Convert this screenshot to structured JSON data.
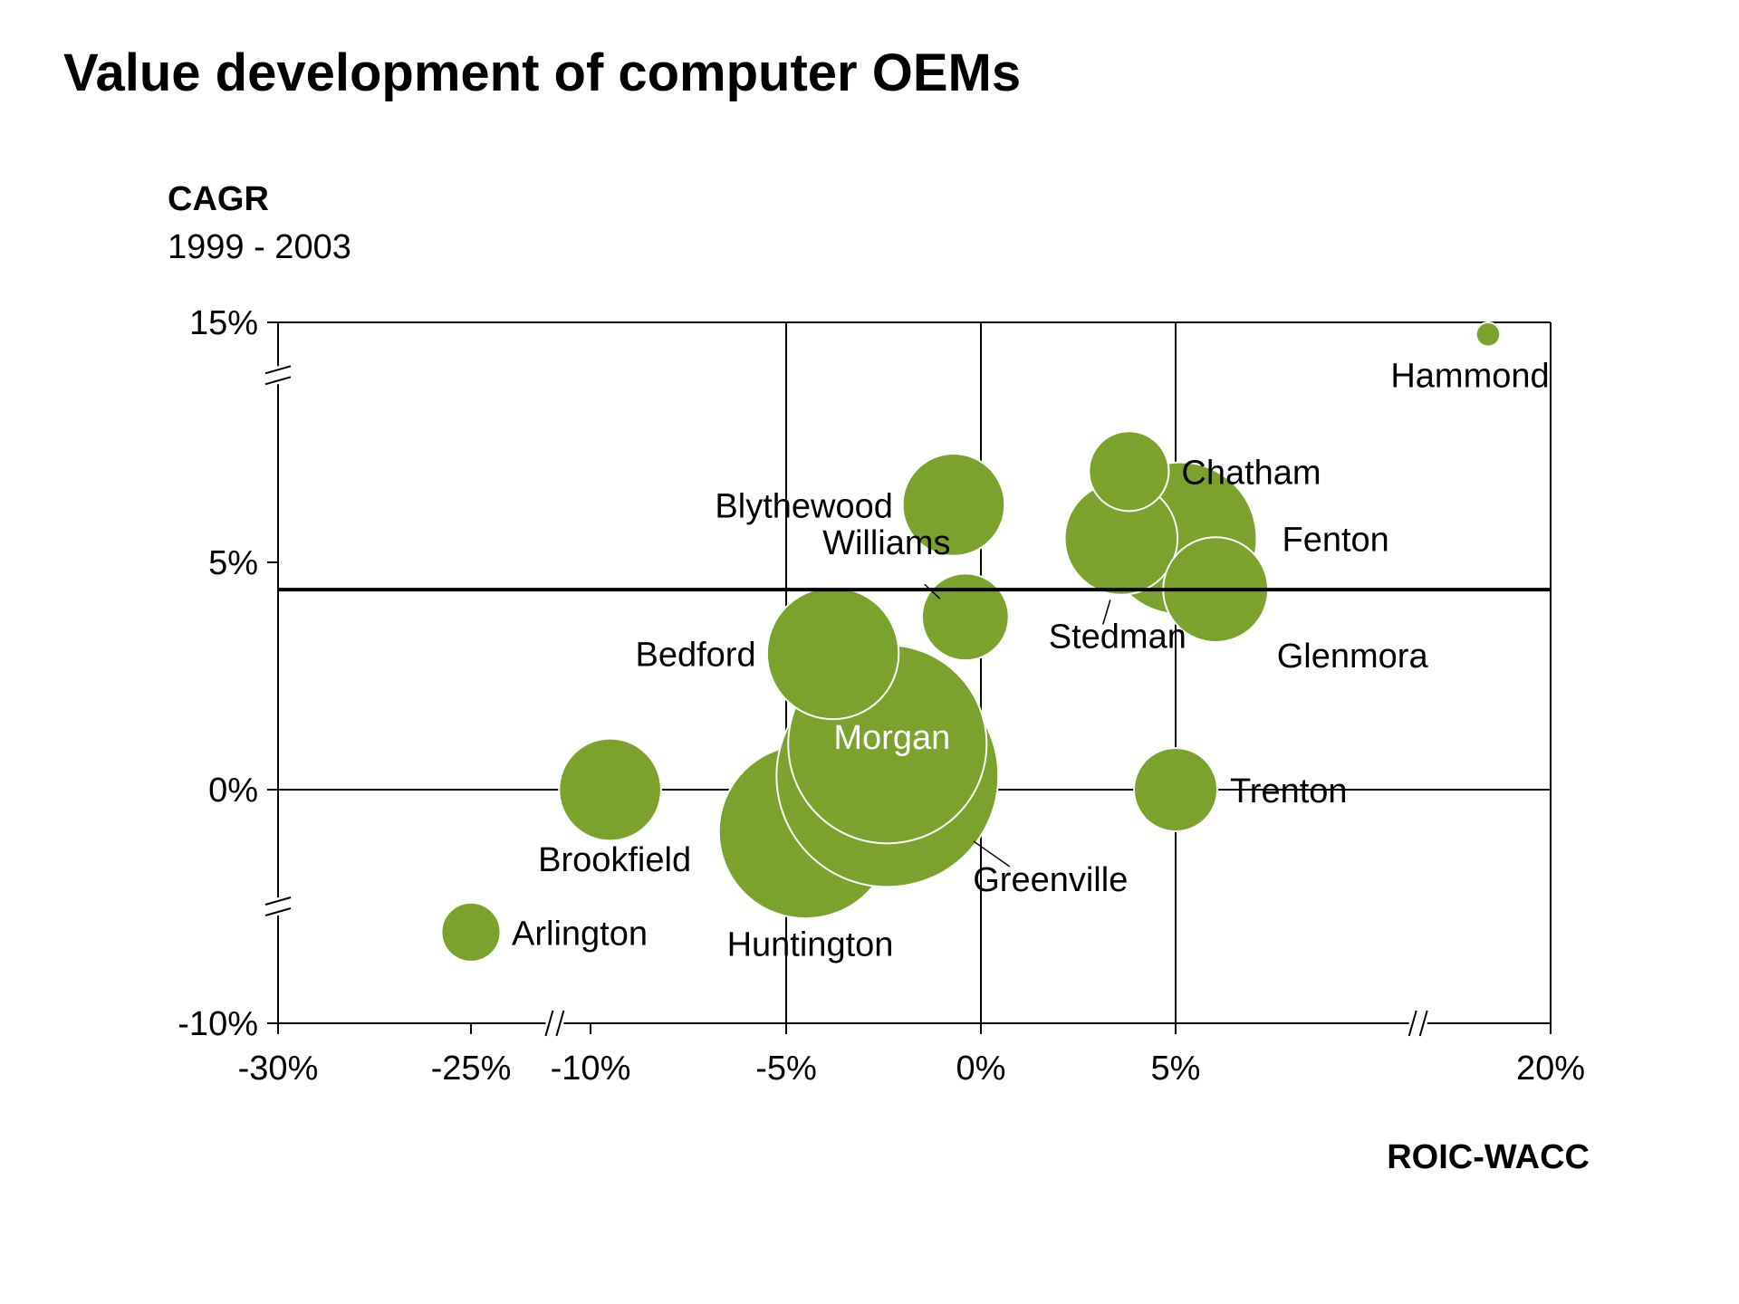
{
  "colors": {
    "bubble": "#7aa22c",
    "bubble_stroke": "#ffffff",
    "axis": "#000000"
  },
  "chart_data": {
    "type": "bubble",
    "title": "Value development of computer OEMs",
    "ylabel": "CAGR",
    "ylabel_sub": "1999 - 2003",
    "xlabel": "ROIC-WACC",
    "reference_line_y": 4.4,
    "x_ticks": [
      {
        "label": "-30%",
        "value": -30
      },
      {
        "label": "-25%",
        "value": -25
      },
      {
        "label": "-10%",
        "value": -10
      },
      {
        "label": "-5%",
        "value": -5
      },
      {
        "label": "0%",
        "value": 0
      },
      {
        "label": "5%",
        "value": 5
      },
      {
        "label": "20%",
        "value": 20
      }
    ],
    "y_ticks": [
      {
        "label": "15%",
        "value": 15
      },
      {
        "label": "5%",
        "value": 5
      },
      {
        "label": "0%",
        "value": 0
      },
      {
        "label": "-10%",
        "value": -10
      }
    ],
    "points": [
      {
        "name": "Arlington",
        "x": -25,
        "y": -6.1,
        "size": 0.6
      },
      {
        "name": "Brookfield",
        "x": -9.5,
        "y": 0.0,
        "size": 1.8
      },
      {
        "name": "Huntington",
        "x": -4.5,
        "y": -1.8,
        "size": 5.2
      },
      {
        "name": "Greenville",
        "x": -2.4,
        "y": 0.3,
        "size": 8.5
      },
      {
        "name": "Morgan",
        "x": -2.4,
        "y": 1.0,
        "size": 6.8
      },
      {
        "name": "Bedford",
        "x": -3.8,
        "y": 3.0,
        "size": 3.0
      },
      {
        "name": "Williams",
        "x": -0.4,
        "y": 3.8,
        "size": 1.3
      },
      {
        "name": "Blythewood",
        "x": -0.7,
        "y": 7.4,
        "size": 1.8
      },
      {
        "name": "Chatham",
        "x": 3.8,
        "y": 8.8,
        "size": 1.1
      },
      {
        "name": "Hammond",
        "x": 17.5,
        "y": 14.5,
        "size": 0.1
      },
      {
        "name": "Fenton",
        "x": 5.2,
        "y": 6.0,
        "size": 4.0
      },
      {
        "name": "Stedman",
        "x": 3.6,
        "y": 6.0,
        "size": 2.2
      },
      {
        "name": "Glenmora",
        "x": 6.6,
        "y": 4.4,
        "size": 1.9
      },
      {
        "name": "Trenton",
        "x": 5.0,
        "y": 0.0,
        "size": 1.2
      }
    ]
  }
}
